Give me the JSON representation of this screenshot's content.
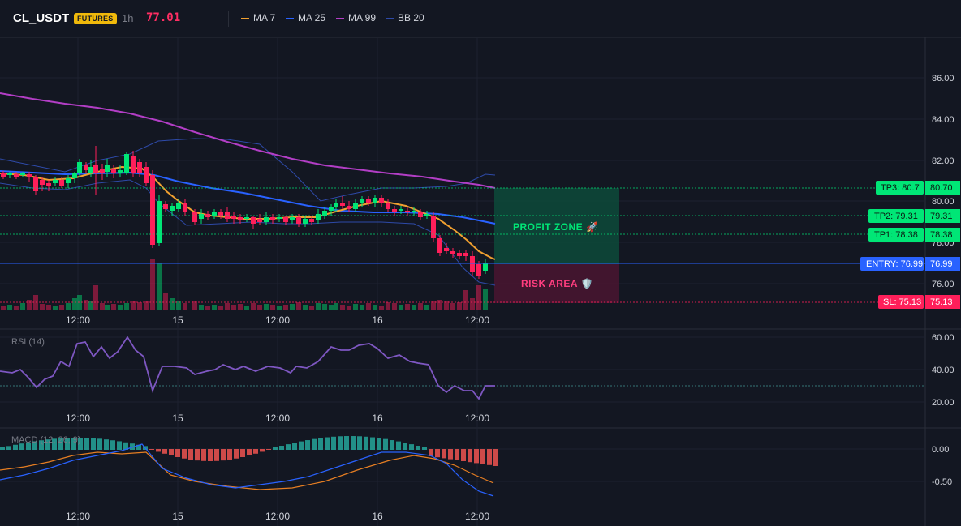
{
  "header": {
    "symbol": "CL_USDT",
    "market_badge": "FUTURES",
    "timeframe": "1h",
    "last_price": "77.01",
    "legend": [
      {
        "label": "MA 7",
        "color": "#f0a030"
      },
      {
        "label": "MA 25",
        "color": "#2962ff"
      },
      {
        "label": "MA 99",
        "color": "#b33ec6"
      },
      {
        "label": "BB 20",
        "color": "#2e4aa8"
      }
    ]
  },
  "main_chart": {
    "price_axis": [
      "86.00",
      "84.00",
      "82.00",
      "80.00",
      "78.00",
      "76.00"
    ],
    "time_axis": [
      "12:00",
      "15",
      "12:00",
      "16",
      "12:00"
    ],
    "levels": [
      {
        "tag": "TP3: 80.7",
        "value": "80.70",
        "color": "#00e676"
      },
      {
        "tag": "TP2: 79.31",
        "value": "79.31",
        "color": "#00e676"
      },
      {
        "tag": "TP1: 78.38",
        "value": "78.38",
        "color": "#00e676"
      },
      {
        "tag": "ENTRY: 76.99",
        "value": "76.99",
        "color": "#2962ff"
      },
      {
        "tag": "SL: 75.13",
        "value": "75.13",
        "color": "#ff1f5a"
      }
    ],
    "profit_zone_label": "PROFIT ZONE 🚀",
    "risk_area_label": "RISK AREA 🛡️"
  },
  "rsi_pane": {
    "title": "RSI (14)",
    "axis": [
      "60.00",
      "40.00",
      "20.00"
    ],
    "time_axis": [
      "12:00",
      "15",
      "12:00",
      "16",
      "12:00"
    ]
  },
  "macd_pane": {
    "title": "MACD (12, 26, 9)",
    "axis": [
      "0.00",
      "-0.50"
    ],
    "time_axis": [
      "12:00",
      "15",
      "12:00",
      "16",
      "12:00"
    ]
  },
  "colors": {
    "background": "#131722",
    "up": "#00e676",
    "down": "#ff1f5a",
    "macd_pos": "#26a69a",
    "macd_neg": "#ef5350",
    "rsi": "#7e57c2"
  }
}
